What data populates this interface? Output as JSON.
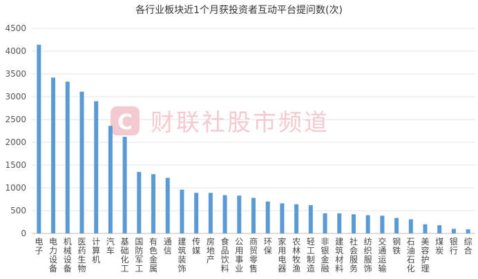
{
  "chart_data": {
    "type": "bar",
    "title": "各行业板块近1个月获投资者互动平台提问数(次)",
    "ylim": [
      0,
      4500
    ],
    "yticks": [
      0,
      500,
      1000,
      1500,
      2000,
      2500,
      3000,
      3500,
      4000,
      4500
    ],
    "grid": true,
    "bar_color": "#5b9bd5",
    "categories": [
      "电子",
      "电力设备",
      "机械设备",
      "医药生物",
      "计算机",
      "汽车",
      "基础化工",
      "国防军工",
      "有色金属",
      "通信",
      "建筑装饰",
      "传媒",
      "房地产",
      "食品饮料",
      "公用事业",
      "商贸零售",
      "环保",
      "家用电器",
      "农林牧渔",
      "轻工制造",
      "非银金融",
      "建筑材料",
      "社会服务",
      "纺织服饰",
      "交通运输",
      "钢铁",
      "石油石化",
      "美容护理",
      "煤炭",
      "银行",
      "综合"
    ],
    "values": [
      4140,
      3420,
      3330,
      3110,
      2900,
      2360,
      2120,
      1350,
      1300,
      1220,
      960,
      890,
      890,
      840,
      830,
      780,
      700,
      660,
      640,
      620,
      440,
      440,
      420,
      400,
      390,
      340,
      310,
      200,
      180,
      100,
      90
    ]
  },
  "watermark": {
    "logo_letter": "C",
    "text": "财联社股市频道",
    "color": "#e8798a"
  }
}
